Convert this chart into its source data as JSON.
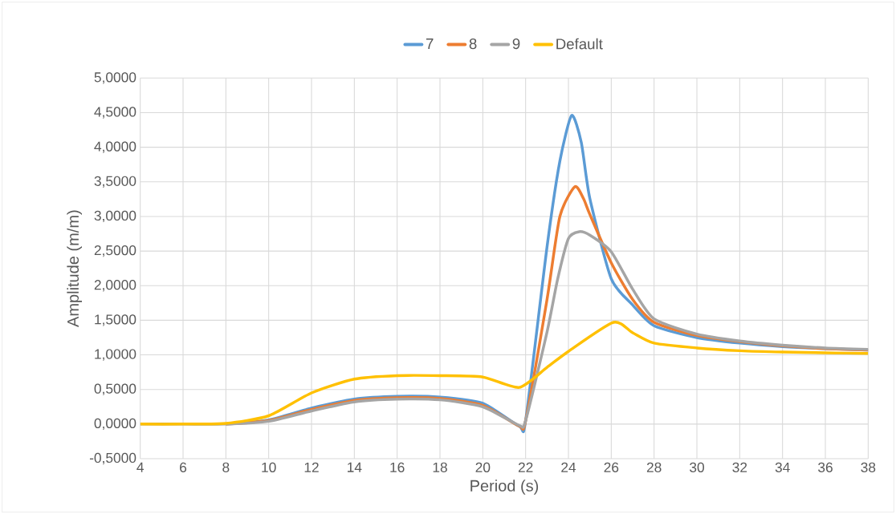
{
  "chart_data": {
    "type": "line",
    "xlabel": "Period (s)",
    "ylabel": "Amplitude (m/m)",
    "xlim": [
      4,
      38
    ],
    "xticks": [
      4,
      6,
      8,
      10,
      12,
      14,
      16,
      18,
      20,
      22,
      24,
      26,
      28,
      30,
      32,
      34,
      36,
      38
    ],
    "ylim": [
      -0.5,
      5
    ],
    "yticks": [
      {
        "value": -0.5,
        "label": "-0,5000"
      },
      {
        "value": 0,
        "label": "0,0000"
      },
      {
        "value": 0.5,
        "label": "0,5000"
      },
      {
        "value": 1,
        "label": "1,0000"
      },
      {
        "value": 1.5,
        "label": "1,5000"
      },
      {
        "value": 2,
        "label": "2,0000"
      },
      {
        "value": 2.5,
        "label": "2,5000"
      },
      {
        "value": 3,
        "label": "3,0000"
      },
      {
        "value": 3.5,
        "label": "3,5000"
      },
      {
        "value": 4,
        "label": "4,0000"
      },
      {
        "value": 4.5,
        "label": "4,5000"
      },
      {
        "value": 5,
        "label": "5,0000"
      }
    ],
    "grid": true,
    "legend": "top",
    "marker": "none",
    "line_style": "solid",
    "series": [
      {
        "name": "7",
        "color": "#5b9bd5",
        "x": [
          8,
          10,
          12,
          14,
          16,
          18,
          20,
          21.7,
          22,
          23,
          23.6,
          24.15,
          24.6,
          25,
          26,
          27,
          28,
          30,
          32,
          34,
          36,
          38
        ],
        "values": [
          0,
          0.06,
          0.23,
          0.36,
          0.4,
          0.39,
          0.3,
          -0.03,
          0.05,
          2.56,
          3.8,
          4.46,
          4.07,
          3.26,
          2.1,
          1.72,
          1.42,
          1.25,
          1.17,
          1.12,
          1.09,
          1.07
        ]
      },
      {
        "name": "8",
        "color": "#ed7d31",
        "x": [
          8,
          10,
          12,
          14,
          16,
          18,
          20,
          21.7,
          22,
          23,
          23.6,
          24.3,
          24.7,
          25,
          26,
          27,
          28,
          30,
          32,
          34,
          36,
          38
        ],
        "values": [
          0,
          0.05,
          0.21,
          0.34,
          0.38,
          0.37,
          0.27,
          -0.03,
          0.05,
          1.8,
          3.0,
          3.43,
          3.26,
          3.03,
          2.33,
          1.8,
          1.47,
          1.28,
          1.19,
          1.13,
          1.09,
          1.07
        ]
      },
      {
        "name": "9",
        "color": "#a5a5a5",
        "x": [
          4,
          6,
          8,
          10,
          12,
          14,
          16,
          18,
          20,
          21.7,
          22,
          23,
          23.5,
          24,
          24.5,
          25,
          26,
          27,
          28,
          30,
          32,
          34,
          36,
          38
        ],
        "values": [
          0,
          0,
          0,
          0.04,
          0.19,
          0.32,
          0.36,
          0.35,
          0.25,
          -0.02,
          0.05,
          1.33,
          2.1,
          2.68,
          2.78,
          2.73,
          2.49,
          1.95,
          1.52,
          1.3,
          1.2,
          1.14,
          1.1,
          1.08
        ]
      },
      {
        "name": "Default",
        "color": "#ffc000",
        "x": [
          4,
          6,
          8,
          10,
          12,
          14,
          16,
          18,
          20,
          21.7,
          23,
          24,
          26.1,
          27,
          28,
          30,
          32,
          34,
          36,
          38
        ],
        "values": [
          0,
          0,
          0.01,
          0.12,
          0.45,
          0.65,
          0.7,
          0.7,
          0.68,
          0.53,
          0.82,
          1.05,
          1.47,
          1.32,
          1.17,
          1.1,
          1.06,
          1.04,
          1.03,
          1.02
        ]
      }
    ]
  }
}
